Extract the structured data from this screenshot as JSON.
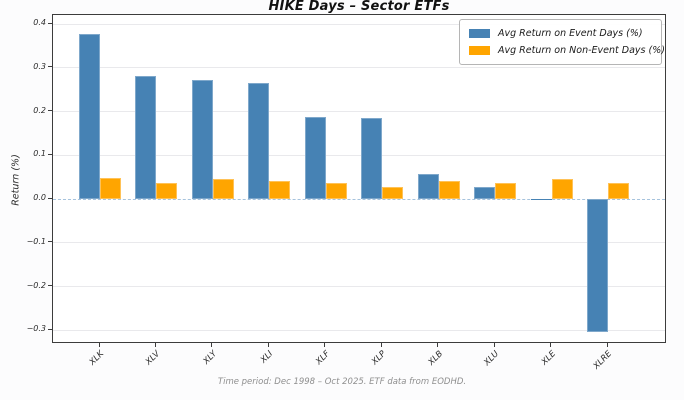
{
  "chart_data": {
    "type": "bar",
    "title": "HIKE Days – Sector ETFs",
    "categories": [
      "XLK",
      "XLV",
      "XLY",
      "XLI",
      "XLF",
      "XLP",
      "XLB",
      "XLU",
      "XLE",
      "XLRE"
    ],
    "series": [
      {
        "name": "Avg Return on Event Days (%)",
        "color": "#4682b4",
        "edge_color": "#7fa8cb",
        "values": [
          0.378,
          0.282,
          0.273,
          0.266,
          0.189,
          0.186,
          0.058,
          0.027,
          0.001,
          -0.303
        ]
      },
      {
        "name": "Avg Return on Non-Event Days (%)",
        "color": "#ffa500",
        "edge_color": "#ffc257",
        "values": [
          0.048,
          0.037,
          0.046,
          0.042,
          0.038,
          0.029,
          0.042,
          0.037,
          0.047,
          0.037
        ]
      }
    ],
    "xlabel": "",
    "ylabel": "Return (%)",
    "ylim": [
      -0.331,
      0.421
    ],
    "yticks": [
      {
        "value": 0.4,
        "label": "0.4"
      },
      {
        "value": 0.3,
        "label": "0.3"
      },
      {
        "value": 0.2,
        "label": "0.2"
      },
      {
        "value": 0.1,
        "label": "0.1"
      },
      {
        "value": 0.0,
        "label": "0.0"
      },
      {
        "value": -0.1,
        "label": "−0.1"
      },
      {
        "value": -0.2,
        "label": "−0.2"
      },
      {
        "value": -0.3,
        "label": "−0.3"
      }
    ],
    "grid": true,
    "gridline_color": "#e9e9ec",
    "zero_line": {
      "value": 0.0,
      "style": "dashed",
      "color": "#a6c3dd"
    },
    "legend_position": "upper right",
    "caption": "Time period: Dec 1998 – Oct 2025. ETF data from EODHD."
  }
}
